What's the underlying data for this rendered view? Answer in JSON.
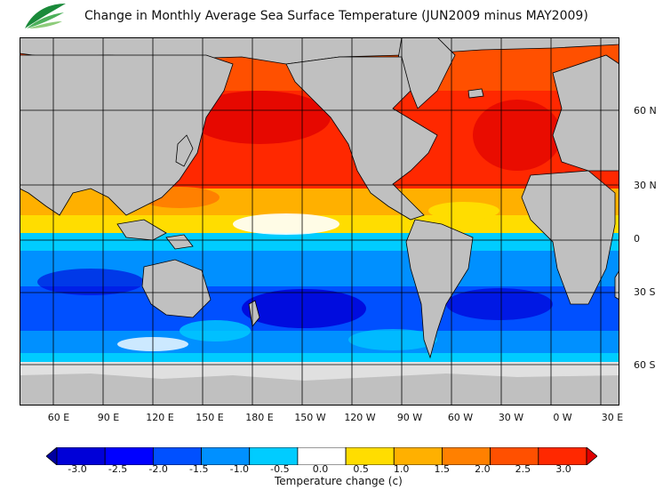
{
  "title": "Change in Monthly Average Sea Surface Temperature (JUN2009 minus MAY2009)",
  "logo": {
    "icon": "leaf-logo-icon",
    "caption": ""
  },
  "map": {
    "lat_labels": [
      "60 N",
      "30 N",
      "0",
      "30 S",
      "60 S"
    ],
    "lon_labels": [
      "60 E",
      "90 E",
      "120 E",
      "150 E",
      "180 E",
      "150 W",
      "120 W",
      "90 W",
      "60 W",
      "30 W",
      "0 W",
      "30 E"
    ],
    "land_color": "#c0c0c0",
    "ice_color": "#e0e0e0"
  },
  "colorbar": {
    "ticks": [
      "-3.0",
      "-2.5",
      "-2.0",
      "-1.5",
      "-1.0",
      "-0.5",
      "0.0",
      "0.5",
      "1.0",
      "1.5",
      "2.0",
      "2.5",
      "3.0"
    ],
    "colors": [
      "#0000a0",
      "#0000d8",
      "#0000ff",
      "#0050ff",
      "#0090ff",
      "#00ccff",
      "#ffffff",
      "#ffdd00",
      "#ffb000",
      "#ff8000",
      "#ff5000",
      "#ff2800",
      "#e00000"
    ],
    "label": "Temperature change  (c)"
  }
}
